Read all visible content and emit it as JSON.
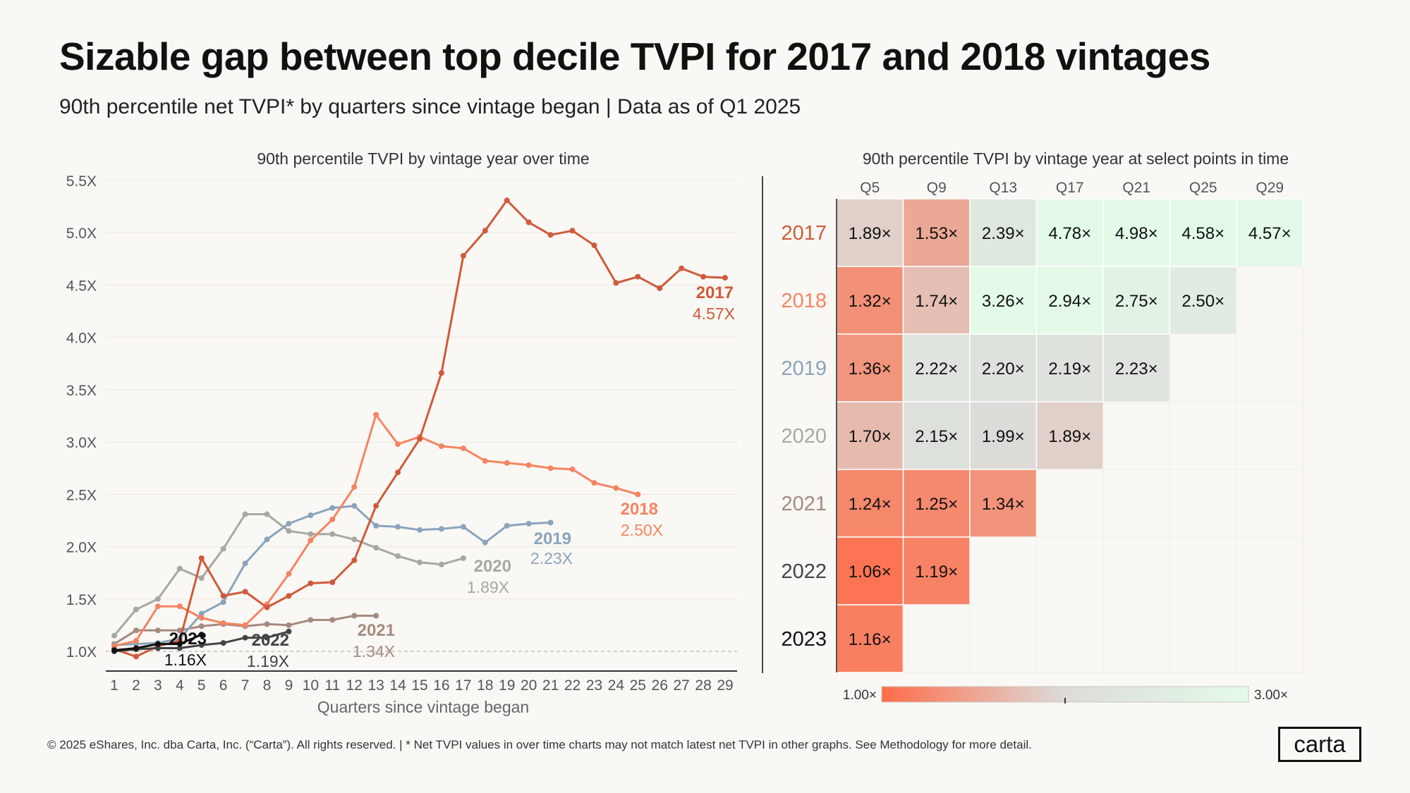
{
  "title": "Sizable gap between top decile TVPI for 2017 and 2018 vintages",
  "subtitle": "90th percentile net TVPI* by quarters since vintage began | Data as of  Q1 2025",
  "footer": "© 2025 eShares, Inc. dba Carta, Inc. (“Carta”). All rights reserved.  |  * Net TVPI values in over time charts may not match latest net TVPI in other  graphs. See Methodology for more detail.",
  "logo": "carta",
  "chart_data": [
    {
      "type": "line",
      "title": "90th percentile TVPI by vintage year over time",
      "xlabel": "Quarters since vintage began",
      "ylabel": "",
      "xlim": [
        1,
        29
      ],
      "ylim": [
        1.0,
        5.5
      ],
      "x_ticks": [
        1,
        2,
        3,
        4,
        5,
        6,
        7,
        8,
        9,
        10,
        11,
        12,
        13,
        14,
        15,
        16,
        17,
        18,
        19,
        20,
        21,
        22,
        23,
        24,
        25,
        26,
        27,
        28,
        29
      ],
      "y_ticks": [
        1.0,
        1.5,
        2.0,
        2.5,
        3.0,
        3.5,
        4.0,
        4.5,
        5.0,
        5.5
      ],
      "y_tick_labels": [
        "1.0X",
        "1.5X",
        "2.0X",
        "2.5X",
        "3.0X",
        "3.5X",
        "4.0X",
        "4.5X",
        "5.0X",
        "5.5X"
      ],
      "reference_line": 1.0,
      "series": [
        {
          "name": "2017",
          "color": "#cf5a3a",
          "final_label": "4.57X",
          "x": [
            1,
            2,
            3,
            4,
            5,
            6,
            7,
            8,
            9,
            10,
            11,
            12,
            13,
            14,
            15,
            16,
            17,
            18,
            19,
            20,
            21,
            22,
            23,
            24,
            25,
            26,
            27,
            28,
            29
          ],
          "values": [
            1.02,
            0.95,
            1.05,
            1.1,
            1.89,
            1.53,
            1.57,
            1.42,
            1.53,
            1.65,
            1.66,
            1.87,
            2.39,
            2.71,
            3.03,
            3.66,
            4.78,
            5.02,
            5.31,
            5.1,
            4.98,
            5.02,
            4.88,
            4.52,
            4.58,
            4.47,
            4.66,
            4.58,
            4.57
          ]
        },
        {
          "name": "2018",
          "color": "#f48462",
          "final_label": "2.50X",
          "x": [
            1,
            2,
            3,
            4,
            5,
            6,
            7,
            8,
            9,
            10,
            11,
            12,
            13,
            14,
            15,
            16,
            17,
            18,
            19,
            20,
            21,
            22,
            23,
            24,
            25
          ],
          "values": [
            1.05,
            1.1,
            1.43,
            1.43,
            1.32,
            1.27,
            1.25,
            1.45,
            1.74,
            2.06,
            2.26,
            2.57,
            3.26,
            2.98,
            3.05,
            2.96,
            2.94,
            2.82,
            2.8,
            2.78,
            2.75,
            2.74,
            2.61,
            2.56,
            2.5
          ]
        },
        {
          "name": "2019",
          "color": "#8aa4be",
          "final_label": "2.23X",
          "x": [
            1,
            2,
            3,
            4,
            5,
            6,
            7,
            8,
            9,
            10,
            11,
            12,
            13,
            14,
            15,
            16,
            17,
            18,
            19,
            20,
            21
          ],
          "values": [
            1.06,
            1.07,
            1.08,
            1.12,
            1.36,
            1.47,
            1.84,
            2.07,
            2.22,
            2.3,
            2.37,
            2.39,
            2.2,
            2.19,
            2.16,
            2.17,
            2.19,
            2.04,
            2.2,
            2.22,
            2.23
          ]
        },
        {
          "name": "2020",
          "color": "#a9a7a2",
          "final_label": "1.89X",
          "x": [
            1,
            2,
            3,
            4,
            5,
            6,
            7,
            8,
            9,
            10,
            11,
            12,
            13,
            14,
            15,
            16,
            17
          ],
          "values": [
            1.15,
            1.4,
            1.5,
            1.79,
            1.7,
            1.98,
            2.31,
            2.31,
            2.15,
            2.12,
            2.12,
            2.07,
            1.99,
            1.91,
            1.85,
            1.83,
            1.89
          ]
        },
        {
          "name": "2021",
          "color": "#a58a80",
          "final_label": "1.34X",
          "x": [
            1,
            2,
            3,
            4,
            5,
            6,
            7,
            8,
            9,
            10,
            11,
            12,
            13
          ],
          "values": [
            1.07,
            1.2,
            1.2,
            1.2,
            1.24,
            1.26,
            1.24,
            1.26,
            1.25,
            1.3,
            1.3,
            1.34,
            1.34
          ]
        },
        {
          "name": "2022",
          "color": "#444444",
          "final_label": "1.19X",
          "x": [
            1,
            2,
            3,
            4,
            5,
            6,
            7,
            8,
            9
          ],
          "values": [
            1.0,
            1.02,
            1.03,
            1.03,
            1.06,
            1.08,
            1.13,
            1.13,
            1.19
          ]
        },
        {
          "name": "2023",
          "color": "#111111",
          "final_label": "1.16X",
          "x": [
            1,
            2,
            3,
            4,
            5
          ],
          "values": [
            1.01,
            1.03,
            1.07,
            1.07,
            1.16
          ]
        }
      ]
    },
    {
      "type": "heatmap",
      "title": "90th percentile TVPI by vintage year at select points in time",
      "columns": [
        "Q5",
        "Q9",
        "Q13",
        "Q17",
        "Q21",
        "Q25",
        "Q29"
      ],
      "rows": [
        {
          "label": "2017",
          "color": "#cf5a3a",
          "values": [
            1.89,
            1.53,
            2.39,
            4.78,
            4.98,
            4.58,
            4.57
          ]
        },
        {
          "label": "2018",
          "color": "#f48462",
          "values": [
            1.32,
            1.74,
            3.26,
            2.94,
            2.75,
            2.5,
            null
          ]
        },
        {
          "label": "2019",
          "color": "#8aa4be",
          "values": [
            1.36,
            2.22,
            2.2,
            2.19,
            2.23,
            null,
            null
          ]
        },
        {
          "label": "2020",
          "color": "#a9a7a2",
          "values": [
            1.7,
            2.15,
            1.99,
            1.89,
            null,
            null,
            null
          ]
        },
        {
          "label": "2021",
          "color": "#a58a80",
          "values": [
            1.24,
            1.25,
            1.34,
            null,
            null,
            null,
            null
          ]
        },
        {
          "label": "2022",
          "color": "#444444",
          "values": [
            1.06,
            1.19,
            null,
            null,
            null,
            null,
            null
          ]
        },
        {
          "label": "2023",
          "color": "#111111",
          "values": [
            1.16,
            null,
            null,
            null,
            null,
            null,
            null
          ]
        }
      ],
      "value_suffix": "×",
      "color_scale": {
        "min": 1.0,
        "max": 3.0,
        "min_label": "1.00×",
        "max_label": "3.00×",
        "low_color": "#fe6d4a",
        "mid_color": "#dcdcd9",
        "high_color": "#e4fae9"
      }
    }
  ]
}
